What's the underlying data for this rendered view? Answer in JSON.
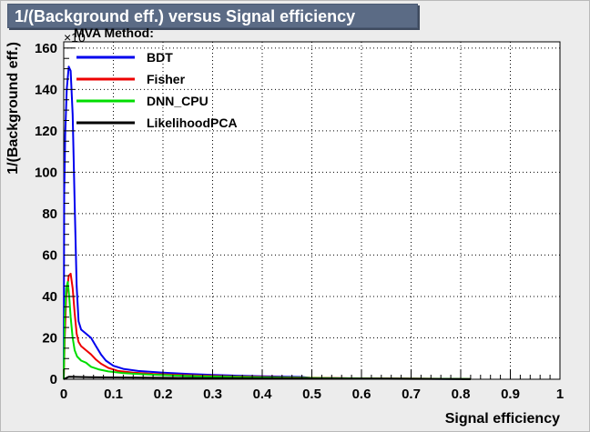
{
  "chart_data": {
    "type": "line",
    "title": "1/(Background eff.) versus Signal efficiency",
    "xlabel": "Signal efficiency",
    "ylabel": "1/(Background eff.)",
    "y_multiplier": "×10",
    "xlim": [
      0,
      1
    ],
    "ylim": [
      0,
      163
    ],
    "x_ticks": [
      "0",
      "0.1",
      "0.2",
      "0.3",
      "0.4",
      "0.5",
      "0.6",
      "0.7",
      "0.8",
      "0.9",
      "1"
    ],
    "y_ticks": [
      "0",
      "20",
      "40",
      "60",
      "80",
      "100",
      "120",
      "140",
      "160"
    ],
    "grid": true,
    "legend_title": "MVA Method:",
    "legend_position": "top-left",
    "series": [
      {
        "name": "BDT",
        "color": "#0000ee",
        "points": [
          [
            0.0,
            0
          ],
          [
            0.001,
            90
          ],
          [
            0.003,
            118
          ],
          [
            0.006,
            140
          ],
          [
            0.01,
            151
          ],
          [
            0.014,
            149
          ],
          [
            0.018,
            128
          ],
          [
            0.022,
            85
          ],
          [
            0.026,
            45
          ],
          [
            0.03,
            28
          ],
          [
            0.035,
            24
          ],
          [
            0.045,
            22
          ],
          [
            0.055,
            20
          ],
          [
            0.065,
            16
          ],
          [
            0.075,
            12
          ],
          [
            0.085,
            9
          ],
          [
            0.1,
            6.5
          ],
          [
            0.12,
            5
          ],
          [
            0.15,
            4
          ],
          [
            0.2,
            3.2
          ],
          [
            0.25,
            2.6
          ],
          [
            0.3,
            2.1
          ],
          [
            0.35,
            1.7
          ],
          [
            0.4,
            1.4
          ],
          [
            0.45,
            1.2
          ],
          [
            0.48,
            1.1
          ],
          [
            0.5,
            0.6
          ],
          [
            0.6,
            0.4
          ],
          [
            0.7,
            0.25
          ],
          [
            0.8,
            0.15
          ],
          [
            0.82,
            0.1
          ]
        ]
      },
      {
        "name": "Fisher",
        "color": "#ee0000",
        "points": [
          [
            0.0,
            0
          ],
          [
            0.002,
            20
          ],
          [
            0.005,
            40
          ],
          [
            0.01,
            50
          ],
          [
            0.014,
            51
          ],
          [
            0.018,
            44
          ],
          [
            0.022,
            32
          ],
          [
            0.026,
            22
          ],
          [
            0.03,
            18
          ],
          [
            0.035,
            16
          ],
          [
            0.045,
            14
          ],
          [
            0.055,
            12
          ],
          [
            0.065,
            9.5
          ],
          [
            0.075,
            7.5
          ],
          [
            0.09,
            5.5
          ],
          [
            0.11,
            4
          ],
          [
            0.14,
            3.2
          ],
          [
            0.18,
            2.6
          ],
          [
            0.23,
            2.1
          ],
          [
            0.3,
            1.6
          ],
          [
            0.4,
            1.1
          ],
          [
            0.5,
            0.7
          ],
          [
            0.6,
            0.45
          ],
          [
            0.7,
            0.3
          ],
          [
            0.8,
            0.18
          ],
          [
            0.82,
            0.1
          ]
        ]
      },
      {
        "name": "DNN_CPU",
        "color": "#00dd00",
        "points": [
          [
            0.0,
            0
          ],
          [
            0.002,
            30
          ],
          [
            0.005,
            44
          ],
          [
            0.008,
            47
          ],
          [
            0.011,
            40
          ],
          [
            0.014,
            30
          ],
          [
            0.018,
            20
          ],
          [
            0.022,
            14
          ],
          [
            0.027,
            11
          ],
          [
            0.035,
            9
          ],
          [
            0.045,
            8
          ],
          [
            0.055,
            6
          ],
          [
            0.07,
            4.8
          ],
          [
            0.09,
            3.8
          ],
          [
            0.12,
            3
          ],
          [
            0.16,
            2.4
          ],
          [
            0.2,
            2
          ],
          [
            0.25,
            1.6
          ],
          [
            0.3,
            1.3
          ],
          [
            0.4,
            0.9
          ],
          [
            0.5,
            0.6
          ],
          [
            0.6,
            0.4
          ],
          [
            0.7,
            0.28
          ],
          [
            0.8,
            0.16
          ],
          [
            0.82,
            0.1
          ]
        ]
      },
      {
        "name": "LikelihoodPCA",
        "color": "#000000",
        "points": [
          [
            0.0,
            0
          ],
          [
            0.01,
            1.2
          ],
          [
            0.05,
            1.0
          ],
          [
            0.1,
            0.9
          ],
          [
            0.2,
            0.7
          ],
          [
            0.3,
            0.55
          ],
          [
            0.4,
            0.45
          ],
          [
            0.5,
            0.35
          ],
          [
            0.6,
            0.25
          ],
          [
            0.7,
            0.18
          ],
          [
            0.8,
            0.1
          ],
          [
            0.82,
            0.05
          ]
        ]
      }
    ]
  }
}
